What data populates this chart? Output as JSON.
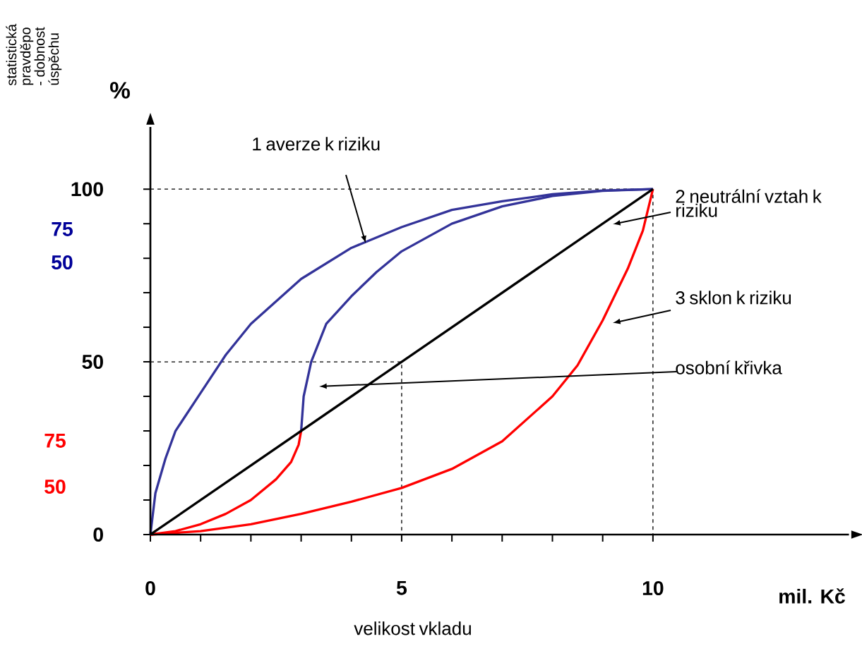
{
  "chart_data": {
    "type": "line",
    "xlabel": "mil. Kč",
    "ylabel": "%",
    "xlim": [
      0,
      13.9
    ],
    "ylim": [
      0,
      118
    ],
    "xticks": [
      0,
      {
        "value": 1,
        "label": null
      },
      {
        "value": 2,
        "label": null
      },
      {
        "value": 3,
        "label": null
      },
      {
        "value": 4,
        "label": null
      },
      5,
      {
        "value": 6,
        "label": null
      },
      {
        "value": 7,
        "label": null
      },
      {
        "value": 8,
        "label": null
      },
      {
        "value": 9,
        "label": null
      },
      10
    ],
    "yticks": [
      0,
      {
        "value": 10,
        "label": null
      },
      {
        "value": 20,
        "label": null
      },
      {
        "value": 30,
        "label": null
      },
      {
        "value": 40,
        "label": null
      },
      50,
      {
        "value": 60,
        "label": null
      },
      {
        "value": 70,
        "label": null
      },
      {
        "value": 80,
        "label": null
      },
      {
        "value": 90,
        "label": null
      },
      100
    ],
    "grid": false,
    "marker": "none",
    "series": [
      {
        "color": "#000000",
        "line_style": "dashed",
        "x": [
          0,
          10,
          10
        ],
        "values": [
          100,
          100,
          0
        ]
      },
      {
        "color": "#000000",
        "line_style": "dashed",
        "x": [
          0,
          5,
          5
        ],
        "values": [
          50,
          50,
          0
        ]
      },
      {
        "color": "#333399",
        "x": [
          0,
          0.1,
          0.3,
          0.5,
          1,
          1.5,
          2,
          3,
          4,
          5,
          6,
          7,
          8,
          9,
          10
        ],
        "values": [
          0,
          12,
          22,
          30,
          41,
          52,
          61,
          74,
          83,
          89,
          94,
          96.5,
          98.5,
          99.6,
          100
        ]
      },
      {
        "color": "#333399",
        "x": [
          3,
          3.05,
          3.2,
          3.5,
          4,
          4.5,
          5,
          6,
          7,
          8,
          9,
          10
        ],
        "values": [
          30,
          40,
          50,
          61,
          69,
          76,
          82,
          90,
          95,
          98,
          99.5,
          100
        ]
      },
      {
        "color": "#ff0000",
        "x": [
          0,
          0.5,
          1,
          1.5,
          2,
          2.5,
          2.8,
          2.95,
          3
        ],
        "values": [
          0,
          1,
          3,
          6,
          10,
          16,
          21,
          26,
          30
        ]
      },
      {
        "color": "#ff0000",
        "x": [
          0,
          1,
          2,
          3,
          4,
          5,
          6,
          7,
          8,
          8.5,
          9,
          9.5,
          9.8,
          10
        ],
        "values": [
          0,
          1,
          3,
          6,
          9.5,
          13.5,
          19,
          27,
          40,
          49,
          62,
          77,
          88,
          100
        ]
      },
      {
        "color": "#000000",
        "x": [
          0,
          10
        ],
        "values": [
          0,
          100
        ]
      }
    ],
    "annotations": [
      "1 averze k riziku",
      "2 neutrální vztah k riziku",
      "3 sklon k riziku",
      "osobní křivka",
      "velikost vkladu",
      "statistická pravděpo - dobnost úspěchu",
      "75",
      "50",
      "75",
      "50"
    ]
  }
}
